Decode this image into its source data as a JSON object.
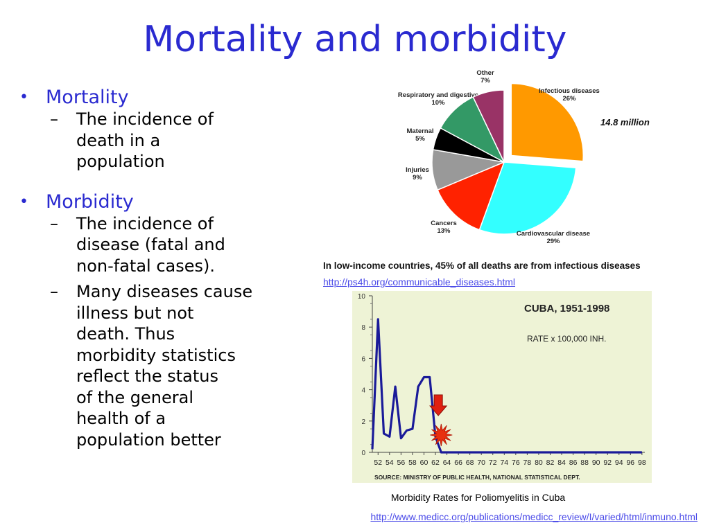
{
  "slide": {
    "title": "Mortality and morbidity",
    "bullets": [
      {
        "label": "Mortality",
        "subs": [
          "The incidence of",
          "death in a",
          "population"
        ]
      },
      {
        "label": "Morbidity",
        "subs1": [
          "The incidence of",
          "disease (fatal and",
          "non-fatal cases)."
        ],
        "subs2": [
          "Many diseases cause",
          "illness but not",
          "death. Thus",
          "morbidity statistics",
          "reflect the status",
          "of the general",
          "health of a",
          "population better"
        ]
      }
    ],
    "pie_caption": "In low-income countries, 45% of all deaths are from infectious diseases",
    "pie_link": "http://ps4h.org/communicable_diseases.html",
    "line_caption": "Morbidity Rates for Poliomyelitis in Cuba",
    "source_link": "http://www.medicc.org/publications/medicc_review/I/varied/html/inmuno.html",
    "colors": {
      "title": "#2a2ad0",
      "link": "#4a4ae8",
      "line_bg": "#eef3d6",
      "line": "#1a1a99"
    }
  },
  "chart_data": [
    {
      "type": "pie",
      "total_label": "14.8 million",
      "slices": [
        {
          "name": "Infectious diseases",
          "value": 26,
          "label": "26%",
          "color": "#ff9900",
          "exploded": true
        },
        {
          "name": "Cardiovascular disease",
          "value": 29,
          "label": "29%",
          "color": "#33ffff"
        },
        {
          "name": "Cancers",
          "value": 13,
          "label": "13%",
          "color": "#ff2200"
        },
        {
          "name": "Injuries",
          "value": 9,
          "label": "9%",
          "color": "#999999"
        },
        {
          "name": "Maternal",
          "value": 5,
          "label": "5%",
          "color": "#000000"
        },
        {
          "name": "Respiratory and digestive",
          "value": 10,
          "label": "10%",
          "color": "#339966"
        },
        {
          "name": "Other",
          "value": 7,
          "label": "7%",
          "color": "#993366"
        }
      ]
    },
    {
      "type": "line",
      "title": "CUBA, 1951-1998",
      "subtitle": "RATE x 100,000 INH.",
      "source": "SOURCE:  MINISTRY OF PUBLIC HEALTH, NATIONAL STATISTICAL DEPT.",
      "ylim": [
        0,
        10
      ],
      "yticks": [
        0,
        2,
        4,
        6,
        8,
        10
      ],
      "xticks": [
        52,
        54,
        56,
        58,
        60,
        62,
        64,
        66,
        68,
        70,
        72,
        74,
        76,
        78,
        80,
        82,
        84,
        86,
        88,
        90,
        92,
        94,
        96,
        98
      ],
      "x": [
        51,
        52,
        53,
        54,
        55,
        56,
        57,
        58,
        59,
        60,
        61,
        62,
        63,
        64,
        98
      ],
      "y": [
        0.2,
        8.5,
        1.2,
        1.0,
        4.2,
        0.9,
        1.4,
        1.5,
        4.2,
        4.8,
        4.8,
        1.0,
        0.0,
        0.0,
        0.0
      ]
    }
  ]
}
